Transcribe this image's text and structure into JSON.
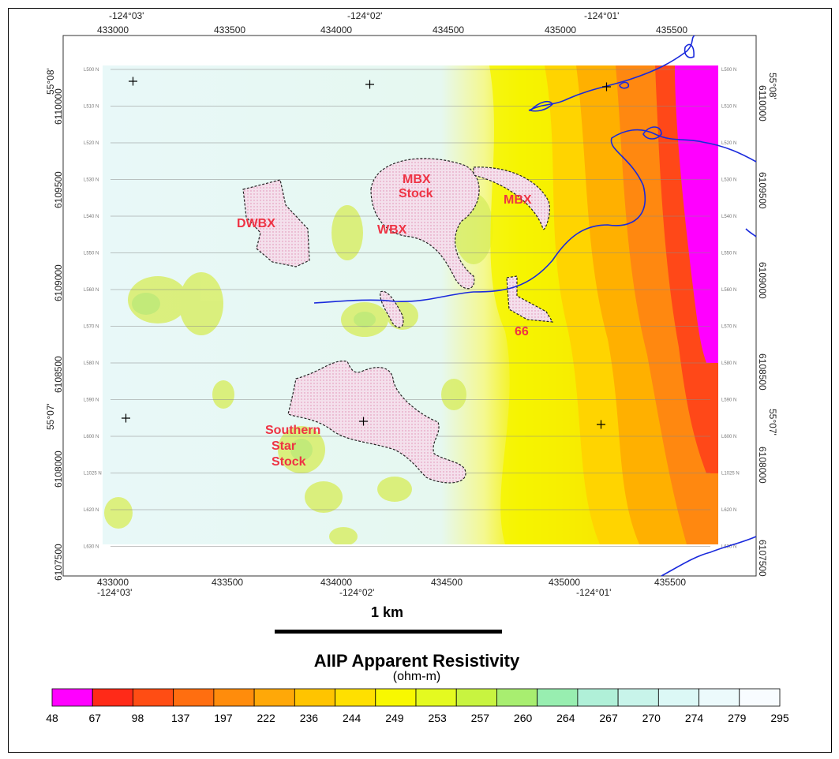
{
  "map": {
    "top_lon_labels": [
      "-124°03'",
      "-124°02'",
      "-124°01'"
    ],
    "bottom_lon_labels": [
      "-124°03'",
      "-124°02'",
      "-124°01'"
    ],
    "top_easting_labels": [
      "433000",
      "433500",
      "434000",
      "434500",
      "435000",
      "435500"
    ],
    "bottom_easting_labels": [
      "433000",
      "433500",
      "434000",
      "434500",
      "435000",
      "435500"
    ],
    "left_northing_labels": [
      "6110000",
      "6109500",
      "6109000",
      "6108500",
      "6108000",
      "6107500"
    ],
    "right_northing_labels": [
      "6110000",
      "6109500",
      "6109000",
      "6108500",
      "6108000",
      "6107500"
    ],
    "left_lat_labels": [
      "55°08'",
      "55°07'"
    ],
    "right_lat_labels": [
      "55°08'",
      "55°07'"
    ],
    "line_labels": [
      "L500 N",
      "L510 N",
      "L520 N",
      "L530 N",
      "L540 N",
      "L550 N",
      "L560 N",
      "L570 N",
      "L580 N",
      "L590 N",
      "L600 N",
      "L1025 N",
      "L620 N",
      "L630 N"
    ],
    "geology_labels": {
      "mbx_stock": [
        "MBX",
        "Stock"
      ],
      "mbx": "MBX",
      "dwbx": "DWBX",
      "wbx": "WBX",
      "sixty_six": "66",
      "southern_star": [
        "Southern",
        "Star",
        "Stock"
      ]
    }
  },
  "scale_bar": {
    "label": "1 km"
  },
  "legend": {
    "title": "AIIP Apparent Resistivity",
    "units": "(ohm-m)",
    "values": [
      "48",
      "67",
      "98",
      "137",
      "197",
      "222",
      "236",
      "244",
      "249",
      "253",
      "257",
      "260",
      "264",
      "267",
      "270",
      "274",
      "279",
      "295"
    ],
    "colors": [
      "#ff00ff",
      "#ff2a18",
      "#ff4d14",
      "#ff6e10",
      "#ff8c0c",
      "#ffa808",
      "#ffc400",
      "#ffe000",
      "#f8f800",
      "#e4fa20",
      "#c8f440",
      "#a8ee70",
      "#98eeb0",
      "#b0f0d8",
      "#c8f4ea",
      "#dcf8f6",
      "#ecfafc",
      "#f8fcff"
    ]
  }
}
